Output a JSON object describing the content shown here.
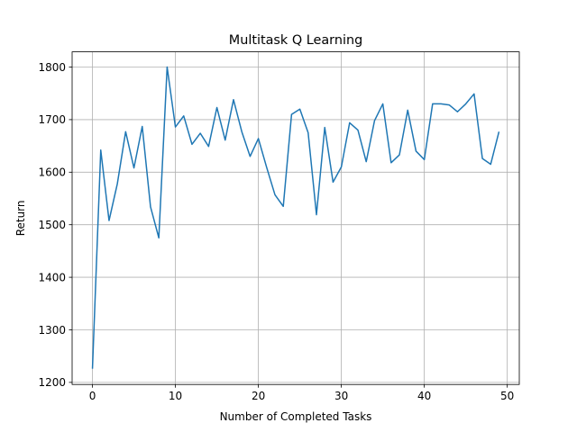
{
  "chart_data": {
    "type": "line",
    "title": "Multitask Q Learning",
    "xlabel": "Number of Completed Tasks",
    "ylabel": "Return",
    "xlim": [
      -2.45,
      51.45
    ],
    "ylim": [
      1196,
      1829
    ],
    "xticks": [
      0,
      10,
      20,
      30,
      40,
      50
    ],
    "yticks": [
      1200,
      1300,
      1400,
      1500,
      1600,
      1700,
      1800
    ],
    "grid": true,
    "series": [
      {
        "color": "#1f77b4",
        "x": [
          0,
          1,
          2,
          3,
          4,
          5,
          6,
          7,
          8,
          9,
          10,
          11,
          12,
          13,
          14,
          15,
          16,
          17,
          18,
          19,
          20,
          21,
          22,
          23,
          24,
          25,
          26,
          27,
          28,
          29,
          30,
          31,
          32,
          33,
          34,
          35,
          36,
          37,
          38,
          39,
          40,
          41,
          42,
          43,
          44,
          45,
          46,
          47,
          48,
          49
        ],
        "y": [
          1226,
          1642,
          1508,
          1578,
          1677,
          1608,
          1687,
          1534,
          1475,
          1800,
          1686,
          1707,
          1653,
          1674,
          1649,
          1723,
          1661,
          1738,
          1677,
          1630,
          1664,
          1609,
          1557,
          1535,
          1710,
          1720,
          1675,
          1519,
          1685,
          1581,
          1610,
          1694,
          1680,
          1620,
          1698,
          1730,
          1618,
          1633,
          1718,
          1640,
          1624,
          1730,
          1730,
          1728,
          1715,
          1730,
          1749,
          1626,
          1615,
          1677
        ]
      }
    ]
  }
}
